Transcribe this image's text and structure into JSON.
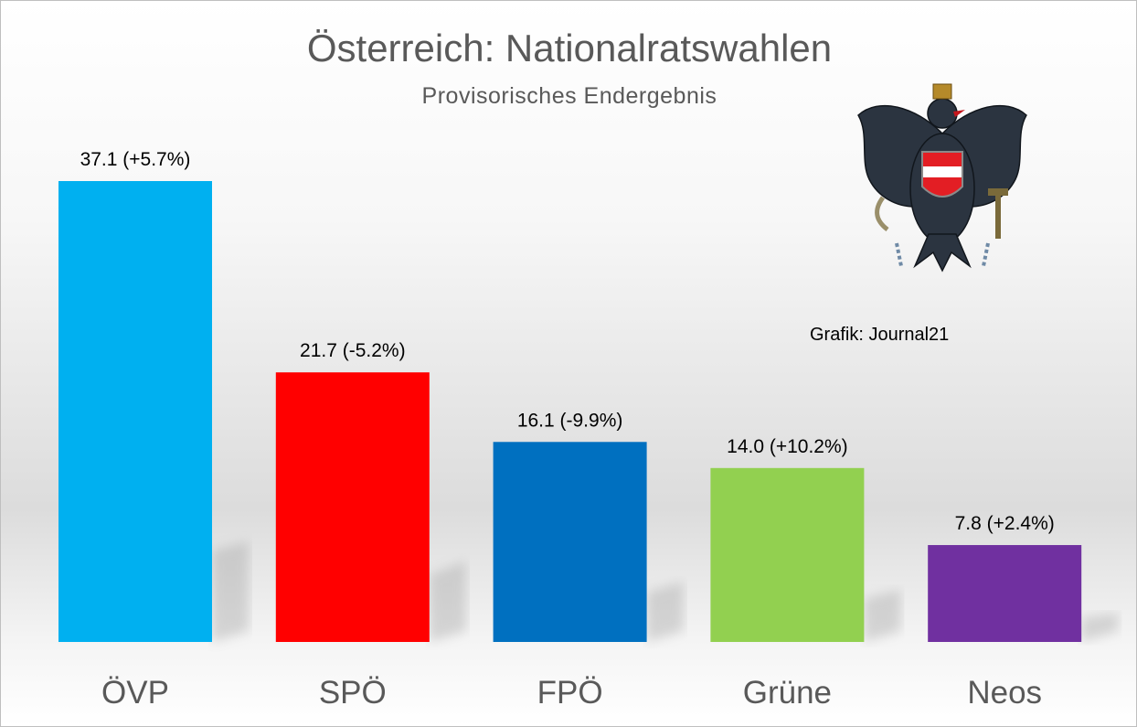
{
  "chart_data": {
    "type": "bar",
    "title": "Österreich: Nationalratswahlen",
    "subtitle": "Provisorisches Endergebnis",
    "annotation": "Grafik: Journal21",
    "categories": [
      "ÖVP",
      "SPÖ",
      "FPÖ",
      "Grüne",
      "Neos"
    ],
    "values": [
      37.1,
      21.7,
      16.1,
      14.0,
      7.8
    ],
    "data_labels": [
      "37.1 (+5.7%)",
      "21.7 (-5.2%)",
      "16.1 (-9.9%)",
      "14.0 (+10.2%)",
      "7.8 (+2.4%)"
    ],
    "colors": [
      "#00B0F0",
      "#FF0000",
      "#0070C0",
      "#92D050",
      "#7030A0"
    ],
    "xlabel": "",
    "ylabel": "",
    "ylim": [
      0,
      37.1
    ],
    "grid": false,
    "legend": "none"
  }
}
